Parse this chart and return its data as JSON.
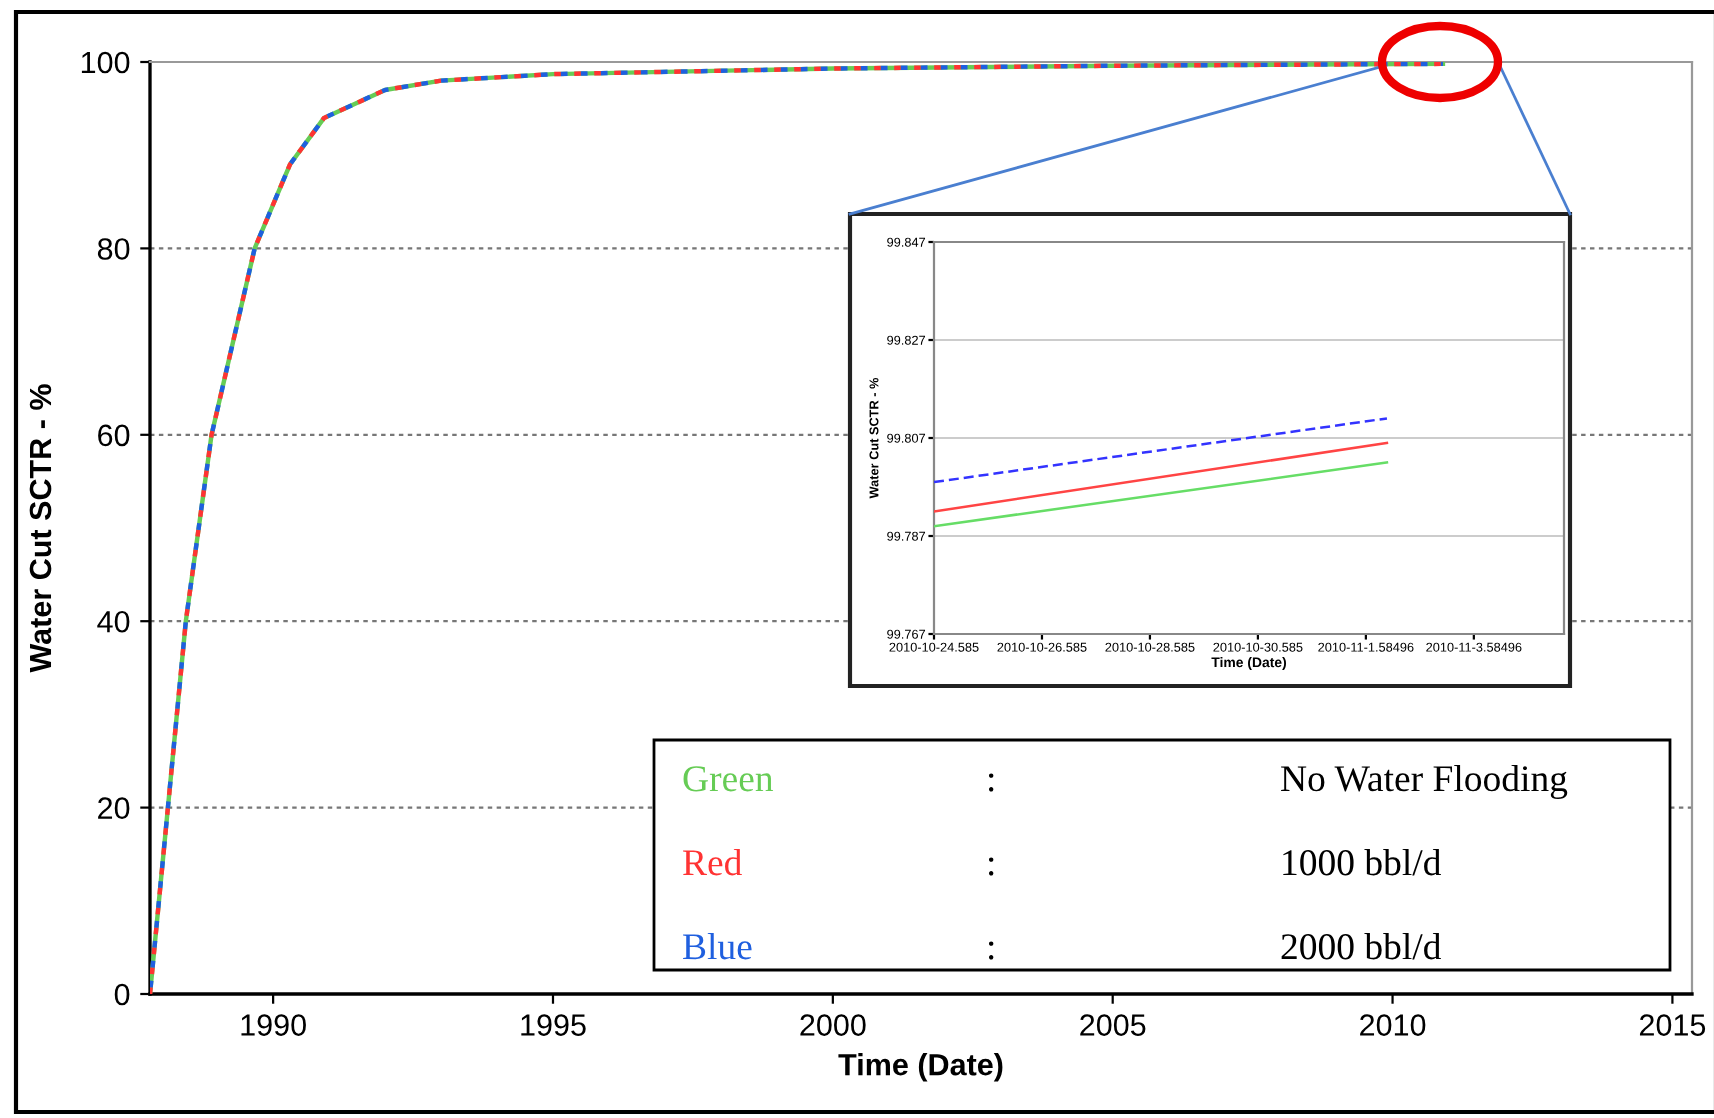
{
  "chart_data": [
    {
      "type": "line",
      "xlabel": "Time (Date)",
      "ylabel": "Water Cut SCTR - %",
      "x": [
        1987.8,
        1988.12,
        1988.44,
        1988.9,
        1989.67,
        1990.3,
        1990.91,
        1992.0,
        1993.0,
        1995.0,
        2000.0,
        2005.0,
        2010.9
      ],
      "series": [
        {
          "name": "Green",
          "color": "#66cc55",
          "line_style": "solid",
          "values": [
            0,
            20,
            40,
            60,
            80,
            89,
            94,
            97,
            98,
            98.7,
            99.3,
            99.6,
            99.8
          ]
        },
        {
          "name": "Red",
          "color": "#ff3333",
          "line_style": "dotted",
          "values": [
            0,
            20,
            40,
            60,
            80,
            89,
            94,
            97,
            98,
            98.7,
            99.3,
            99.6,
            99.8
          ]
        },
        {
          "name": "Blue",
          "color": "#1f5fdf",
          "line_style": "dotted",
          "values": [
            0,
            20,
            40,
            60,
            80,
            89,
            94,
            97,
            98,
            98.7,
            99.3,
            99.6,
            99.8
          ]
        }
      ],
      "xlim": [
        1987.8,
        2015.35
      ],
      "xticks": [
        1990,
        1995,
        2000,
        2005,
        2010,
        2015
      ],
      "ylim": [
        0,
        100
      ],
      "yticks": [
        0,
        20,
        40,
        60,
        80,
        100
      ],
      "grid": "y",
      "legend": "bottom",
      "annotations": [
        ":",
        "No Water Flooding",
        ":",
        "1000 bbl/d",
        ":",
        "2000 bbl/d"
      ]
    },
    {
      "type": "line",
      "xlabel": "Time (Date)",
      "ylabel": "Water Cut SCTR - %",
      "x": [
        "2010-10-24T14:02",
        "2010-11-01T23:24"
      ],
      "series": [
        {
          "color": "#66dd66",
          "line_style": "solid",
          "values": [
            99.789,
            99.802
          ]
        },
        {
          "color": "#ff4444",
          "line_style": "solid",
          "values": [
            99.792,
            99.806
          ]
        },
        {
          "color": "#3333ff",
          "line_style": "dashed",
          "values": [
            99.798,
            99.811
          ]
        }
      ],
      "xlim": [
        "2010-10-24T14:02",
        "2010-11-05T06:07"
      ],
      "xticks": [
        {
          "value": "2010-10-24T14:02",
          "label": "2010-10-24.585"
        },
        {
          "value": "2010-10-26T14:02",
          "label": "2010-10-26.585"
        },
        {
          "value": "2010-10-28T14:02",
          "label": "2010-10-28.585"
        },
        {
          "value": "2010-10-30T14:02",
          "label": "2010-10-30.585"
        },
        {
          "value": "2010-11-01T14:02",
          "label": "2010-11-1.58496"
        },
        {
          "value": "2010-11-03T14:02",
          "label": "2010-11-3.58496"
        }
      ],
      "ylim": [
        99.767,
        99.847
      ],
      "yticks": [
        99.767,
        99.787,
        99.807,
        99.827,
        99.847
      ],
      "grid": "y"
    }
  ]
}
